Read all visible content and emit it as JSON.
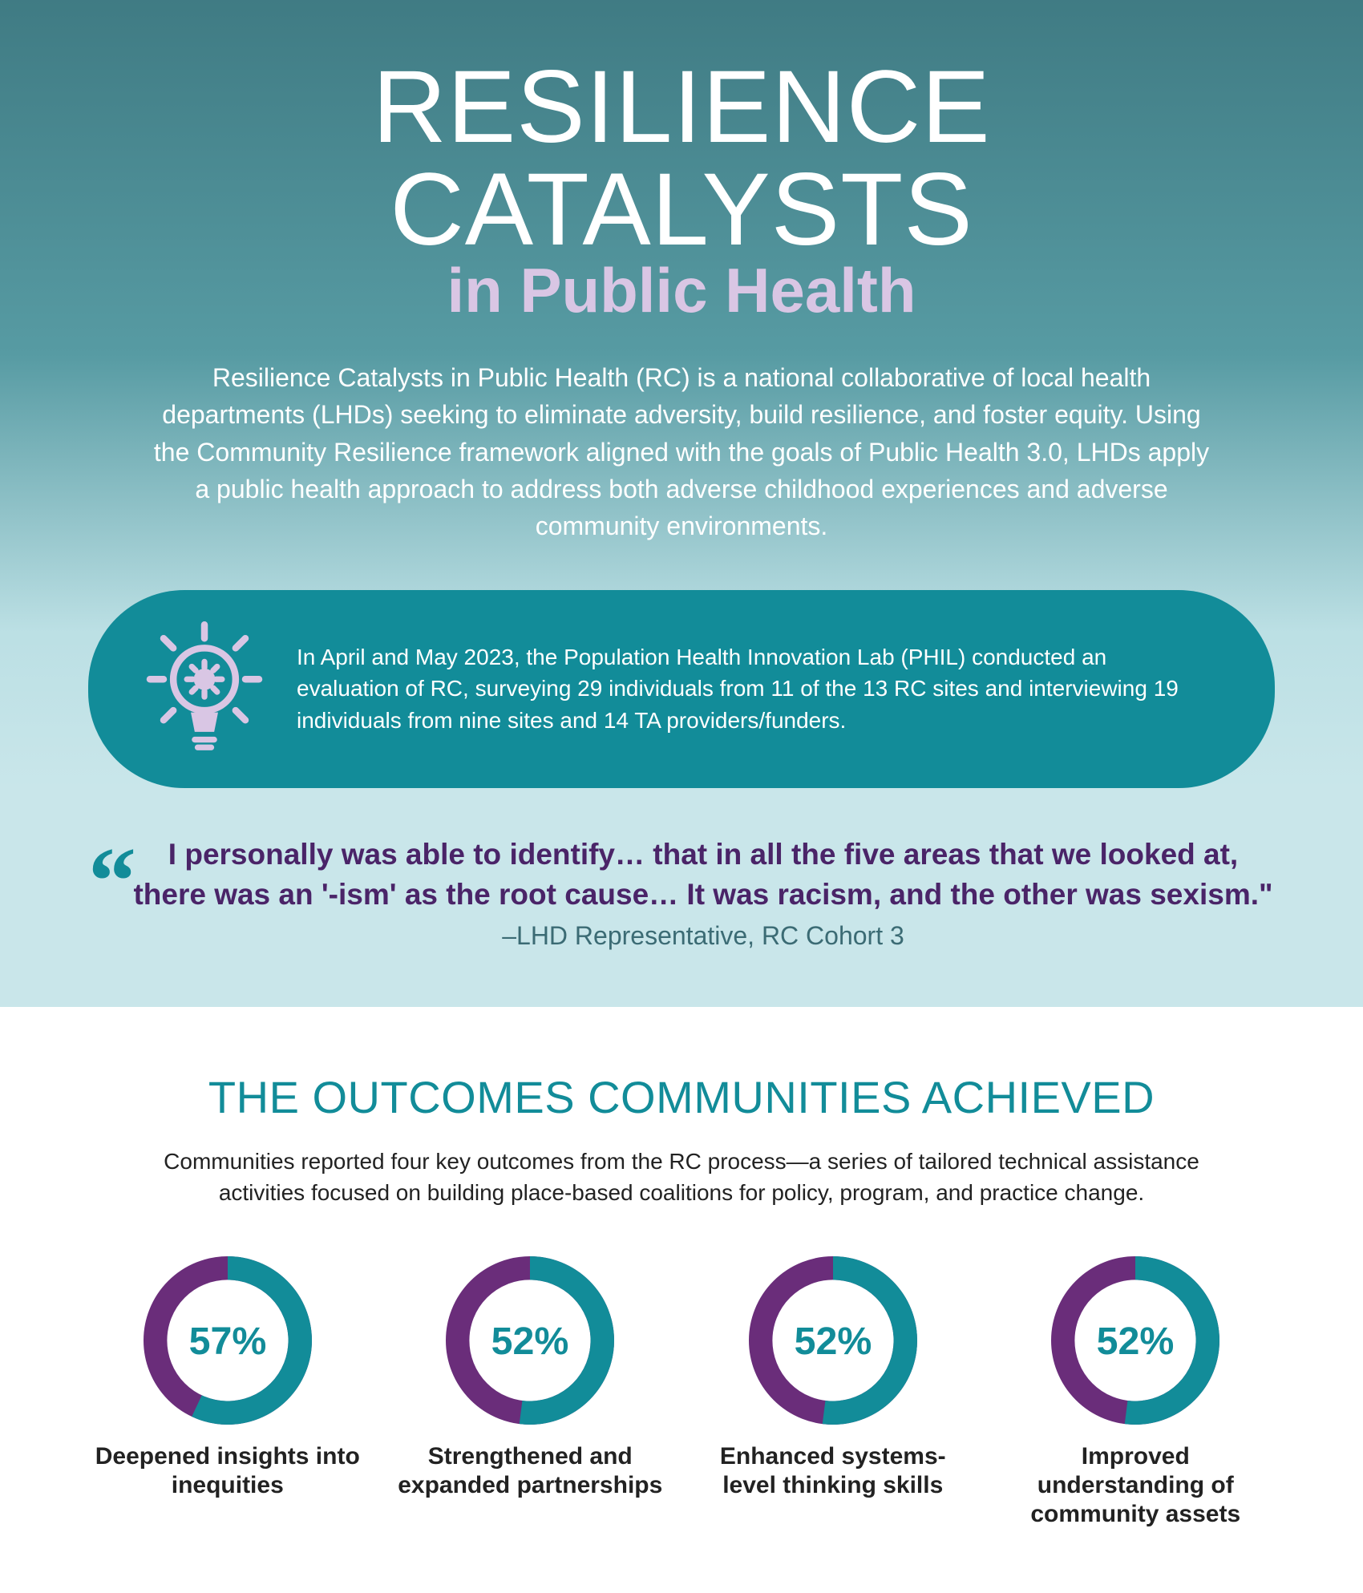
{
  "colors": {
    "teal": "#128c99",
    "teal_dark": "#0b7d88",
    "purple": "#6a2d7a",
    "lavender": "#d9c6e4",
    "quote_bg": "#c9e6ea",
    "title_white": "#ffffff",
    "body_dark": "#222222"
  },
  "header": {
    "title_main": "RESILIENCE CATALYSTS",
    "title_sub": "in Public Health",
    "title_sub_color": "#d9c6e4",
    "intro": "Resilience Catalysts in Public Health (RC) is a national collaborative of local health departments (LHDs) seeking to eliminate adversity, build resilience, and foster equity. Using the Community Resilience framework aligned with the goals of Public Health 3.0, LHDs apply a public health approach to address both adverse childhood experiences and adverse community environments."
  },
  "callout": {
    "bg_color": "#128c99",
    "icon_color": "#d9c6e4",
    "text": "In April and May 2023, the Population Health Innovation Lab (PHIL) conducted an evaluation of RC, surveying 29 individuals from 11 of the 13 RC sites and interviewing 19 individuals from nine sites and 14 TA providers/funders."
  },
  "quote": {
    "text": "I personally was able to identify… that in all the five areas that we looked at, there was an '-ism' as the root cause… It was racism, and the other was sexism.\"",
    "attribution": "–LHD Representative, RC Cohort 3",
    "text_color": "#4a2468",
    "attr_color": "#3b6b74",
    "mark_color": "#128c99"
  },
  "outcomes": {
    "heading": "THE OUTCOMES COMMUNITIES ACHIEVED",
    "heading_color": "#128c99",
    "subtext": "Communities reported four key outcomes from the RC process—a series of tailored technical assistance activities focused on building place-based coalitions for policy, program, and practice change.",
    "donut": {
      "ring_width": 28,
      "radius_outer": 100,
      "primary_color": "#128c99",
      "secondary_color": "#6a2d7a",
      "pct_color": "#128c99",
      "label_color": "#222222"
    },
    "items": [
      {
        "pct": 57,
        "pct_label": "57%",
        "label": "Deepened insights into inequities"
      },
      {
        "pct": 52,
        "pct_label": "52%",
        "label": "Strengthened and expanded partnerships"
      },
      {
        "pct": 52,
        "pct_label": "52%",
        "label": "Enhanced systems-level thinking skills"
      },
      {
        "pct": 52,
        "pct_label": "52%",
        "label": "Improved understanding of community assets"
      }
    ]
  }
}
